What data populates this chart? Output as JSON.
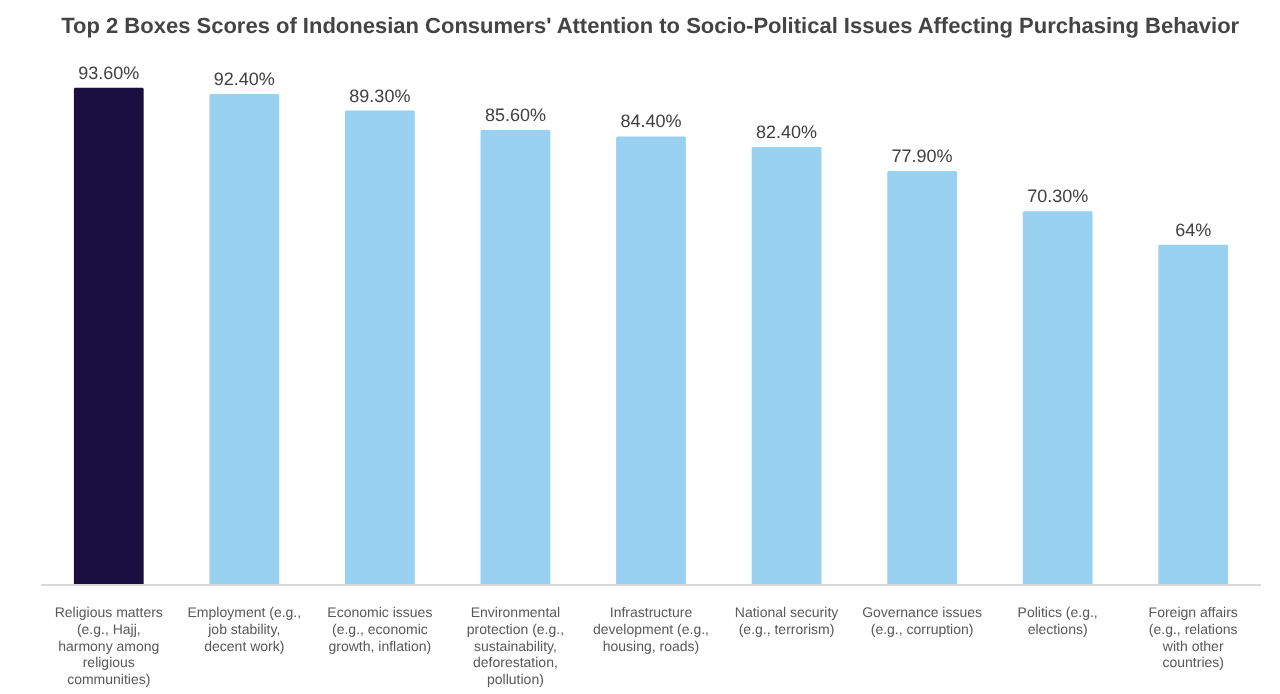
{
  "chart_data": {
    "type": "bar",
    "title": "Top 2 Boxes Scores of Indonesian Consumers' Attention to Socio-Political Issues Affecting Purchasing Behavior",
    "categories": [
      "Religious matters (e.g., Hajj, harmony among religious communities)",
      "Employment (e.g., job stability, decent work)",
      "Economic issues (e.g., economic growth, inflation)",
      "Environmental protection (e.g., sustainability, deforestation, pollution)",
      "Infrastructure development (e.g., housing, roads)",
      "National security (e.g., terrorism)",
      "Governance issues (e.g., corruption)",
      "Politics (e.g., elections)",
      "Foreign affairs (e.g., relations with other countries)"
    ],
    "values": [
      93.6,
      92.4,
      89.3,
      85.6,
      84.4,
      82.4,
      77.9,
      70.3,
      64
    ],
    "value_labels": [
      "93.60%",
      "92.40%",
      "89.30%",
      "85.60%",
      "84.40%",
      "82.40%",
      "77.90%",
      "70.30%",
      "64%"
    ],
    "colors": [
      "#1b0f3f",
      "#99d1f1",
      "#99d1f1",
      "#99d1f1",
      "#99d1f1",
      "#99d1f1",
      "#99d1f1",
      "#99d1f1",
      "#99d1f1"
    ],
    "tick_labels": "x",
    "grid": false
  }
}
